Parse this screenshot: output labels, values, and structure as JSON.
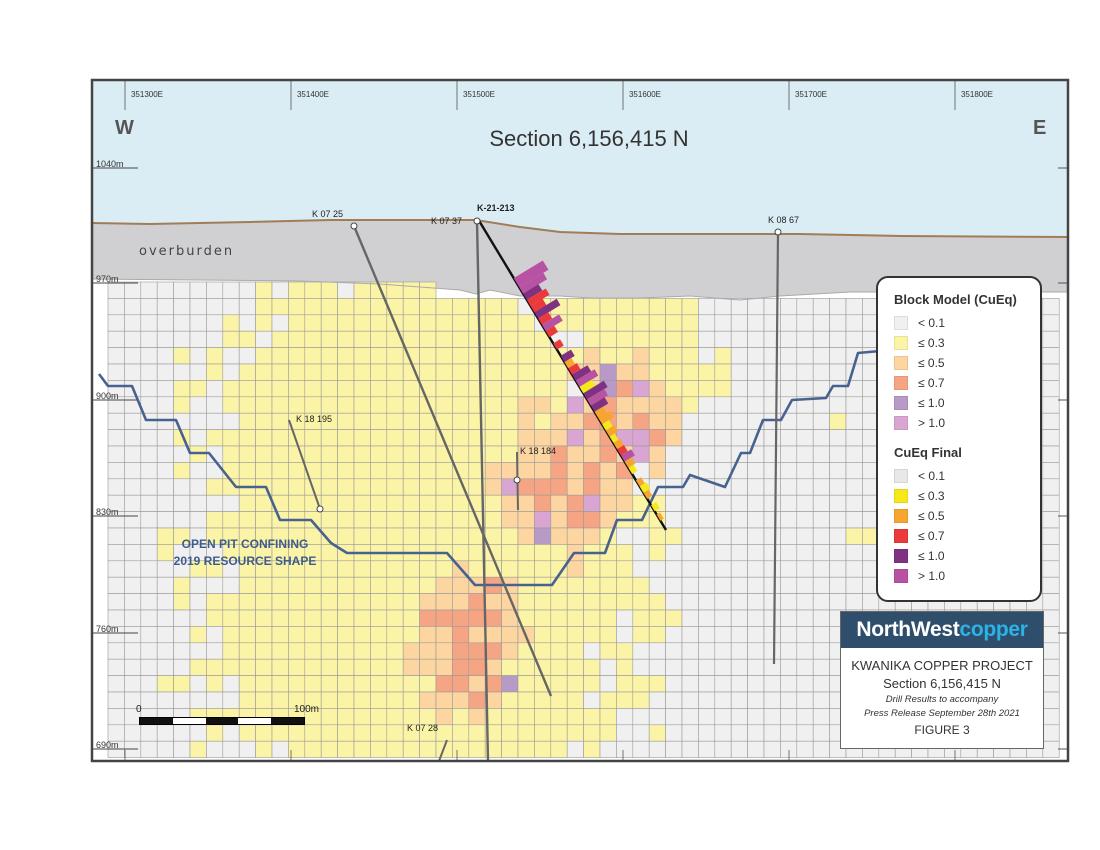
{
  "section": {
    "title": "Section 6,156,415 N",
    "compass_west": "W",
    "compass_east": "E",
    "overburden_label": "overburden",
    "pit_label_line1": "OPEN PIT CONFINING",
    "pit_label_line2": "2019 RESOURCE SHAPE"
  },
  "eastings": [
    "351300E",
    "351400E",
    "351500E",
    "351600E",
    "351700E",
    "351800E"
  ],
  "elevations": [
    "1040m",
    "970m",
    "900m",
    "830m",
    "760m",
    "690m"
  ],
  "drillholes": [
    {
      "name": "K 07 25",
      "highlight": false
    },
    {
      "name": "K 07 37",
      "highlight": false
    },
    {
      "name": "K-21-213",
      "highlight": true
    },
    {
      "name": "K 08 67",
      "highlight": false
    },
    {
      "name": "K 18 195",
      "highlight": false
    },
    {
      "name": "K 18 184",
      "highlight": false
    },
    {
      "name": "K 07 28",
      "highlight": false
    }
  ],
  "legend": {
    "block_model_title": "Block Model (CuEq)",
    "block_model": [
      {
        "label": "< 0.1",
        "color": "#f0f0f0"
      },
      {
        "label": "≤ 0.3",
        "color": "#fbf4a6"
      },
      {
        "label": "≤ 0.5",
        "color": "#fcd5a0"
      },
      {
        "label": "≤ 0.7",
        "color": "#f6a584"
      },
      {
        "label": "≤ 1.0",
        "color": "#b79ac6"
      },
      {
        "label": "> 1.0",
        "color": "#d9a6d4"
      }
    ],
    "cueq_title": "CuEq Final",
    "cueq_final": [
      {
        "label": "< 0.1",
        "color": "#e8e8e8"
      },
      {
        "label": "≤ 0.3",
        "color": "#f5e91c"
      },
      {
        "label": "≤ 0.5",
        "color": "#f7a531"
      },
      {
        "label": "≤ 0.7",
        "color": "#ea3a3c"
      },
      {
        "label": "≤ 1.0",
        "color": "#7f3282"
      },
      {
        "label": "> 1.0",
        "color": "#b852a2"
      }
    ]
  },
  "title_block": {
    "logo_part1": "NorthWest",
    "logo_part2": "copper",
    "project": "KWANIKA COPPER PROJECT",
    "section": "Section 6,156,415 N",
    "drill_line1": "Drill Results to accompany",
    "drill_line2": "Press Release September 28th 2021",
    "figure": "FIGURE 3"
  },
  "scale": {
    "start": "0",
    "end": "100m"
  }
}
